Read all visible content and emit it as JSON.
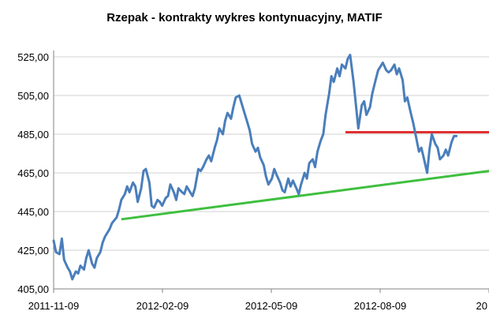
{
  "chart_data": {
    "type": "line",
    "title": "Rzepak - kontrakty wykres kontynuacyjny, MATIF",
    "xlabel": "",
    "ylabel": "",
    "ylim": [
      405,
      525
    ],
    "y_ticks": [
      "405,00",
      "425,00",
      "445,00",
      "465,00",
      "485,00",
      "505,00",
      "525,00"
    ],
    "x_ticks": [
      "2011-11-09",
      "2012-02-09",
      "2012-05-09",
      "2012-08-09",
      "20"
    ],
    "x_range": [
      "2011-11-09",
      "2012-11-16"
    ],
    "grid": "horizontal",
    "series": [
      {
        "color": "#4a7ebb",
        "points": [
          [
            "2011-11-09",
            430
          ],
          [
            "2011-11-11",
            424
          ],
          [
            "2011-11-14",
            423
          ],
          [
            "2011-11-16",
            431
          ],
          [
            "2011-11-18",
            420
          ],
          [
            "2011-11-21",
            416
          ],
          [
            "2011-11-23",
            414
          ],
          [
            "2011-11-25",
            410
          ],
          [
            "2011-11-28",
            414
          ],
          [
            "2011-11-30",
            413
          ],
          [
            "2011-12-02",
            417
          ],
          [
            "2011-12-05",
            415
          ],
          [
            "2011-12-07",
            421
          ],
          [
            "2011-12-09",
            425
          ],
          [
            "2011-12-12",
            418
          ],
          [
            "2011-12-14",
            416
          ],
          [
            "2011-12-16",
            421
          ],
          [
            "2011-12-19",
            424
          ],
          [
            "2011-12-21",
            429
          ],
          [
            "2011-12-23",
            432
          ],
          [
            "2011-12-27",
            436
          ],
          [
            "2011-12-29",
            439
          ],
          [
            "2012-01-02",
            442
          ],
          [
            "2012-01-04",
            446
          ],
          [
            "2012-01-06",
            451
          ],
          [
            "2012-01-09",
            454
          ],
          [
            "2012-01-11",
            458
          ],
          [
            "2012-01-13",
            455
          ],
          [
            "2012-01-16",
            460
          ],
          [
            "2012-01-18",
            458
          ],
          [
            "2012-01-20",
            450
          ],
          [
            "2012-01-23",
            457
          ],
          [
            "2012-01-25",
            466
          ],
          [
            "2012-01-27",
            467
          ],
          [
            "2012-01-30",
            460
          ],
          [
            "2012-02-01",
            448
          ],
          [
            "2012-02-03",
            447
          ],
          [
            "2012-02-06",
            451
          ],
          [
            "2012-02-08",
            450
          ],
          [
            "2012-02-10",
            448
          ],
          [
            "2012-02-13",
            452
          ],
          [
            "2012-02-15",
            453
          ],
          [
            "2012-02-17",
            459
          ],
          [
            "2012-02-20",
            455
          ],
          [
            "2012-02-22",
            451
          ],
          [
            "2012-02-24",
            457
          ],
          [
            "2012-02-27",
            455
          ],
          [
            "2012-02-29",
            454
          ],
          [
            "2012-03-02",
            458
          ],
          [
            "2012-03-05",
            455
          ],
          [
            "2012-03-07",
            453
          ],
          [
            "2012-03-09",
            457
          ],
          [
            "2012-03-12",
            467
          ],
          [
            "2012-03-14",
            466
          ],
          [
            "2012-03-16",
            468
          ],
          [
            "2012-03-19",
            472
          ],
          [
            "2012-03-21",
            474
          ],
          [
            "2012-03-23",
            471
          ],
          [
            "2012-03-26",
            478
          ],
          [
            "2012-03-28",
            482
          ],
          [
            "2012-03-30",
            488
          ],
          [
            "2012-04-02",
            485
          ],
          [
            "2012-04-04",
            492
          ],
          [
            "2012-04-06",
            496
          ],
          [
            "2012-04-09",
            493
          ],
          [
            "2012-04-11",
            499
          ],
          [
            "2012-04-13",
            504
          ],
          [
            "2012-04-16",
            505
          ],
          [
            "2012-04-18",
            501
          ],
          [
            "2012-04-20",
            497
          ],
          [
            "2012-04-23",
            491
          ],
          [
            "2012-04-25",
            487
          ],
          [
            "2012-04-27",
            480
          ],
          [
            "2012-04-30",
            476
          ],
          [
            "2012-05-02",
            478
          ],
          [
            "2012-05-04",
            473
          ],
          [
            "2012-05-07",
            469
          ],
          [
            "2012-05-09",
            463
          ],
          [
            "2012-05-11",
            459
          ],
          [
            "2012-05-14",
            462
          ],
          [
            "2012-05-16",
            467
          ],
          [
            "2012-05-18",
            464
          ],
          [
            "2012-05-21",
            460
          ],
          [
            "2012-05-23",
            456
          ],
          [
            "2012-05-25",
            455
          ],
          [
            "2012-05-28",
            462
          ],
          [
            "2012-05-30",
            458
          ],
          [
            "2012-06-01",
            461
          ],
          [
            "2012-06-04",
            457
          ],
          [
            "2012-06-06",
            454
          ],
          [
            "2012-06-08",
            459
          ],
          [
            "2012-06-11",
            465
          ],
          [
            "2012-06-13",
            462
          ],
          [
            "2012-06-15",
            470
          ],
          [
            "2012-06-18",
            472
          ],
          [
            "2012-06-20",
            468
          ],
          [
            "2012-06-22",
            476
          ],
          [
            "2012-06-25",
            482
          ],
          [
            "2012-06-27",
            485
          ],
          [
            "2012-06-29",
            495
          ],
          [
            "2012-07-02",
            506
          ],
          [
            "2012-07-04",
            515
          ],
          [
            "2012-07-06",
            512
          ],
          [
            "2012-07-09",
            519
          ],
          [
            "2012-07-11",
            515
          ],
          [
            "2012-07-13",
            521
          ],
          [
            "2012-07-16",
            519
          ],
          [
            "2012-07-18",
            524
          ],
          [
            "2012-07-20",
            526
          ],
          [
            "2012-07-23",
            512
          ],
          [
            "2012-07-25",
            500
          ],
          [
            "2012-07-27",
            488
          ],
          [
            "2012-07-30",
            500
          ],
          [
            "2012-08-01",
            502
          ],
          [
            "2012-08-03",
            495
          ],
          [
            "2012-08-06",
            499
          ],
          [
            "2012-08-08",
            506
          ],
          [
            "2012-08-10",
            511
          ],
          [
            "2012-08-13",
            518
          ],
          [
            "2012-08-15",
            520
          ],
          [
            "2012-08-17",
            522
          ],
          [
            "2012-08-20",
            518
          ],
          [
            "2012-08-22",
            517
          ],
          [
            "2012-08-24",
            518
          ],
          [
            "2012-08-27",
            521
          ],
          [
            "2012-08-29",
            516
          ],
          [
            "2012-08-31",
            519
          ],
          [
            "2012-09-03",
            513
          ],
          [
            "2012-09-05",
            502
          ],
          [
            "2012-09-07",
            504
          ],
          [
            "2012-09-10",
            496
          ],
          [
            "2012-09-12",
            491
          ],
          [
            "2012-09-14",
            485
          ],
          [
            "2012-09-17",
            476
          ],
          [
            "2012-09-19",
            478
          ],
          [
            "2012-09-21",
            473
          ],
          [
            "2012-09-24",
            465
          ],
          [
            "2012-09-26",
            477
          ],
          [
            "2012-09-28",
            485
          ],
          [
            "2012-10-01",
            480
          ],
          [
            "2012-10-03",
            478
          ],
          [
            "2012-10-05",
            472
          ],
          [
            "2012-10-08",
            474
          ],
          [
            "2012-10-10",
            477
          ],
          [
            "2012-10-12",
            474
          ],
          [
            "2012-10-15",
            481
          ],
          [
            "2012-10-17",
            484
          ],
          [
            "2012-10-19",
            484
          ]
        ]
      }
    ],
    "trendlines": [
      {
        "color": "#3fbf3f",
        "from": [
          "2012-01-06",
          441
        ],
        "to": [
          "2012-11-16",
          466
        ]
      },
      {
        "color": "#e03030",
        "from": [
          "2012-07-16",
          486
        ],
        "to": [
          "2012-11-16",
          486
        ]
      }
    ]
  }
}
